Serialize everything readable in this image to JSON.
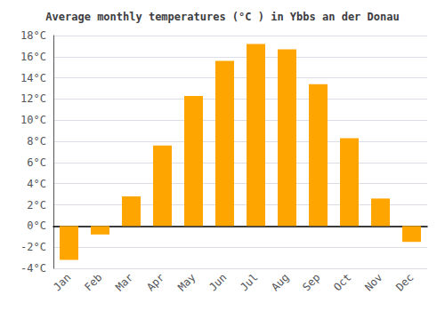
{
  "chart_data": {
    "type": "bar",
    "title": "Average monthly temperatures (°C ) in Ybbs an der Donau",
    "categories": [
      "Jan",
      "Feb",
      "Mar",
      "Apr",
      "May",
      "Jun",
      "Jul",
      "Aug",
      "Sep",
      "Oct",
      "Nov",
      "Dec"
    ],
    "values": [
      -3.2,
      -0.8,
      2.8,
      7.6,
      12.3,
      15.6,
      17.2,
      16.7,
      13.4,
      8.3,
      2.6,
      -1.5
    ],
    "color": "#FFA500",
    "ylim": [
      -4,
      18
    ],
    "yticks": [
      {
        "value": -4,
        "label": "-4°C"
      },
      {
        "value": -2,
        "label": "-2°C"
      },
      {
        "value": 0,
        "label": "0°C"
      },
      {
        "value": 2,
        "label": "2°C"
      },
      {
        "value": 4,
        "label": "4°C"
      },
      {
        "value": 6,
        "label": "6°C"
      },
      {
        "value": 8,
        "label": "8°C"
      },
      {
        "value": 10,
        "label": "10°C"
      },
      {
        "value": 12,
        "label": "12°C"
      },
      {
        "value": 14,
        "label": "14°C"
      },
      {
        "value": 16,
        "label": "16°C"
      },
      {
        "value": 18,
        "label": "18°C"
      }
    ],
    "grid": true
  }
}
